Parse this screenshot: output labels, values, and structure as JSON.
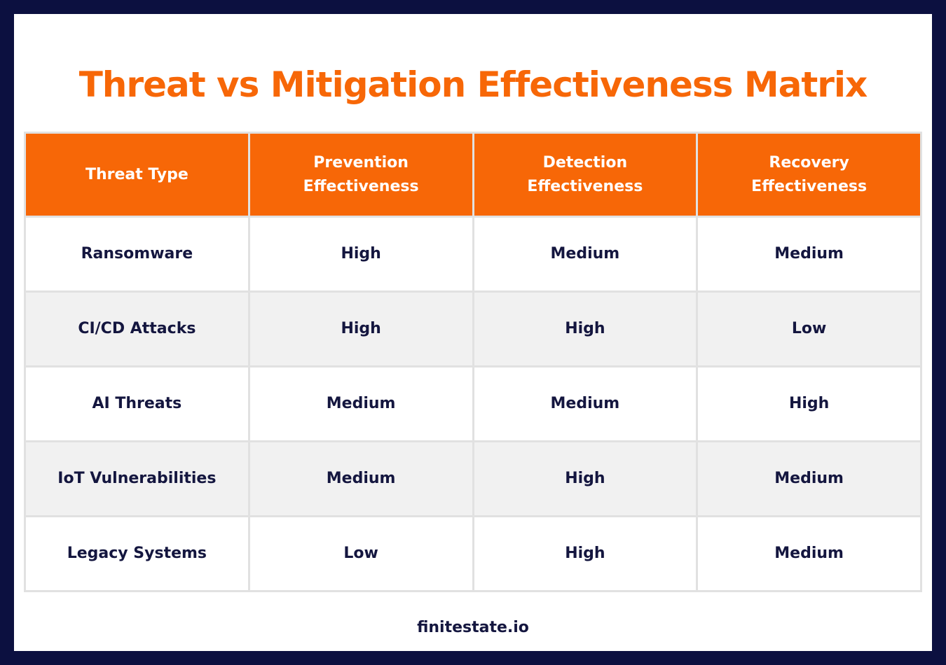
{
  "header": {
    "title": "Threat vs Mitigation Effectiveness Matrix"
  },
  "table": {
    "columns": [
      "Threat Type",
      "Prevention Effectiveness",
      "Detection Effectiveness",
      "Recovery Effectiveness"
    ],
    "rows": [
      [
        "Ransomware",
        "High",
        "Medium",
        "Medium"
      ],
      [
        "CI/CD Attacks",
        "High",
        "High",
        "Low"
      ],
      [
        "AI Threats",
        "Medium",
        "Medium",
        "High"
      ],
      [
        "IoT Vulnerabilities",
        "Medium",
        "High",
        "Medium"
      ],
      [
        "Legacy Systems",
        "Low",
        "High",
        "Medium"
      ]
    ]
  },
  "footer": {
    "text": "finitestate.io"
  }
}
